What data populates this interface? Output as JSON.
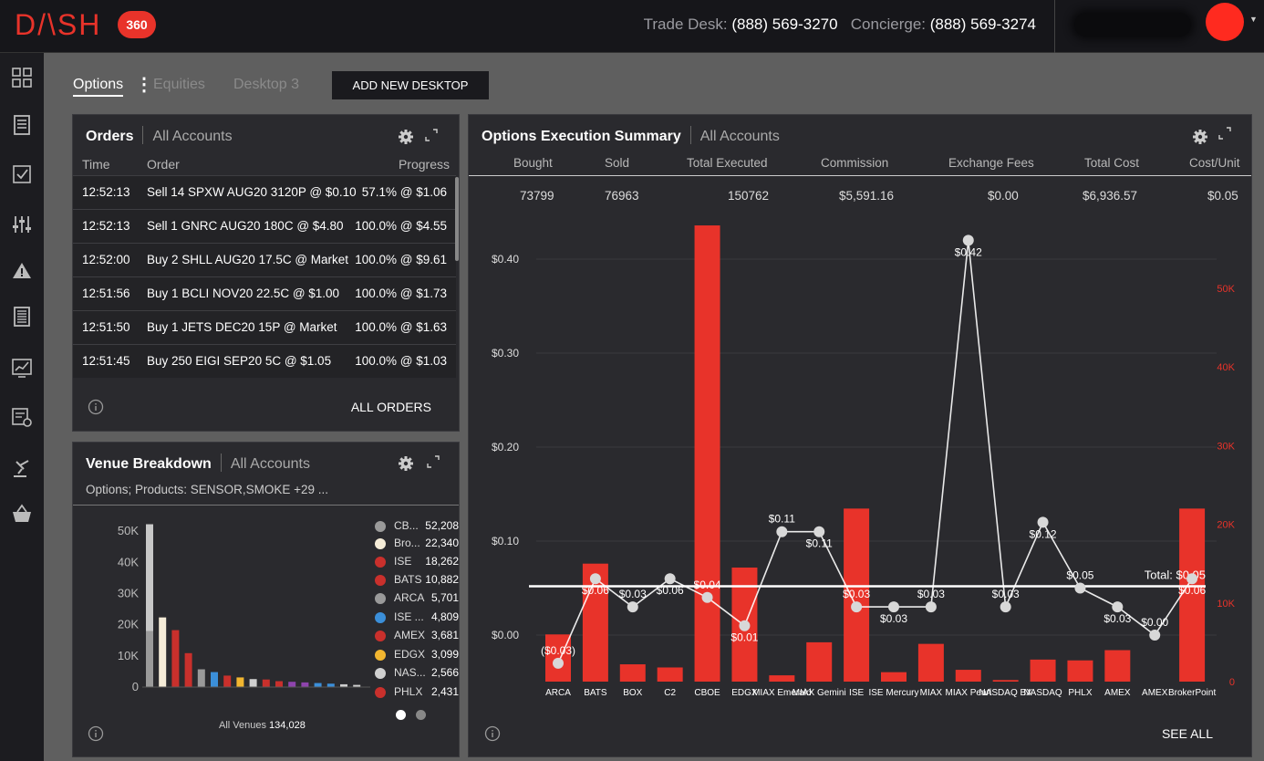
{
  "header": {
    "logo_text": "D/\\SH",
    "logo_badge": "360",
    "trade_desk_label": "Trade Desk:",
    "trade_desk_phone": "(888) 569-3270",
    "concierge_label": "Concierge:",
    "concierge_phone": "(888) 569-3274",
    "avatar_color": "#ff2a1f"
  },
  "sidebar": {
    "icons": [
      "grid-icon",
      "document-icon",
      "checklist-icon",
      "sliders-icon",
      "warning-icon",
      "list-icon",
      "chart-monitor-icon",
      "settings-list-icon",
      "gavel-icon",
      "basket-icon"
    ]
  },
  "desktops": {
    "tabs": [
      "Options",
      "Equities",
      "Desktop 3"
    ],
    "active": "Options",
    "add_label": "ADD NEW DESKTOP"
  },
  "orders": {
    "title": "Orders",
    "account": "All Accounts",
    "columns": [
      "Time",
      "Order",
      "Progress"
    ],
    "rows": [
      {
        "time": "12:52:13",
        "order": "Sell 14 SPXW AUG20 3120P @ $0.10",
        "progress": "57.1% @ $1.06"
      },
      {
        "time": "12:52:13",
        "order": "Sell 1 GNRC AUG20 180C @ $4.80",
        "progress": "100.0% @ $4.55"
      },
      {
        "time": "12:52:00",
        "order": "Buy 2 SHLL AUG20 17.5C @ Market",
        "progress": "100.0% @ $9.61"
      },
      {
        "time": "12:51:56",
        "order": "Buy 1 BCLI NOV20 22.5C @ $1.00",
        "progress": "100.0% @ $1.73"
      },
      {
        "time": "12:51:50",
        "order": "Buy 1 JETS DEC20 15P @ Market",
        "progress": "100.0% @ $1.63"
      },
      {
        "time": "12:51:45",
        "order": "Buy 250 EIGI SEP20 5C @ $1.05",
        "progress": "100.0% @ $1.03"
      }
    ],
    "footer_link": "ALL ORDERS"
  },
  "venue": {
    "title": "Venue Breakdown",
    "account": "All Accounts",
    "filter": "Options; Products: SENSOR,SMOKE +29 ...",
    "total_label": "All Venues",
    "total_value": "134,028",
    "legend": [
      {
        "name": "CB...",
        "value": "52,208",
        "color": "#9a9a9a"
      },
      {
        "name": "Bro...",
        "value": "22,340",
        "color": "#f5ecd8"
      },
      {
        "name": "ISE",
        "value": "18,262",
        "color": "#c9302c"
      },
      {
        "name": "BATS",
        "value": "10,882",
        "color": "#c9302c"
      },
      {
        "name": "ARCA",
        "value": "5,701",
        "color": "#9a9a9a"
      },
      {
        "name": "ISE ...",
        "value": "4,809",
        "color": "#3b8fd9"
      },
      {
        "name": "AMEX",
        "value": "3,681",
        "color": "#c9302c"
      },
      {
        "name": "EDGX",
        "value": "3,099",
        "color": "#f2b630"
      },
      {
        "name": "NAS...",
        "value": "2,566",
        "color": "#d0d0d0"
      },
      {
        "name": "PHLX",
        "value": "2,431",
        "color": "#c9302c"
      }
    ]
  },
  "summary": {
    "title": "Options Execution Summary",
    "account": "All Accounts",
    "columns": [
      "Bought",
      "Sold",
      "Total Executed",
      "Commission",
      "Exchange Fees",
      "Total Cost",
      "Cost/Unit"
    ],
    "values": [
      "73799",
      "76963",
      "150762",
      "$5,591.16",
      "$0.00",
      "$6,936.57",
      "$0.05"
    ],
    "footer_link": "SEE ALL"
  },
  "chart_data": [
    {
      "type": "bar",
      "categories": [
        "CB...",
        "Bro...",
        "ISE",
        "BATS",
        "ARCA",
        "ISE ...",
        "AMEX",
        "EDGX",
        "NAS...",
        "PHLX",
        "",
        "",
        "",
        "",
        "",
        "",
        ""
      ],
      "values": [
        52208,
        22340,
        18262,
        10882,
        5701,
        4809,
        3681,
        3099,
        2566,
        2431,
        1900,
        1700,
        1500,
        1300,
        1100,
        900,
        700
      ],
      "colors": [
        "#9a9a9a",
        "#f5ecd8",
        "#c9302c",
        "#c9302c",
        "#9a9a9a",
        "#3b8fd9",
        "#c9302c",
        "#f2b630",
        "#d0d0d0",
        "#c9302c",
        "#c9302c",
        "#8e44ad",
        "#8e44ad",
        "#3b8fd9",
        "#3b8fd9",
        "#d0d0d0",
        "#d0d0d0"
      ],
      "y_ticks": [
        "0",
        "10K",
        "20K",
        "30K",
        "40K",
        "50K"
      ],
      "ylim": [
        0,
        55000
      ]
    },
    {
      "type": "bar+line",
      "categories": [
        "ARCA",
        "BATS",
        "BOX",
        "C2",
        "CBOE",
        "EDGX",
        "MIAX Emerald",
        "MIAX Gemini",
        "ISE",
        "ISE Mercury",
        "MIAX",
        "MIAX Pearl",
        "NASDAQ BX",
        "NASDAQ",
        "PHLX",
        "AMEX",
        "AMEX",
        "BrokerPoint"
      ],
      "bar_values": [
        6000,
        15000,
        2200,
        1800,
        58000,
        14500,
        800,
        5000,
        22000,
        1200,
        4800,
        1500,
        200,
        2800,
        2700,
        4000,
        0,
        22000
      ],
      "line_values": [
        -0.03,
        0.06,
        0.03,
        0.06,
        0.04,
        0.01,
        0.11,
        0.11,
        0.03,
        0.03,
        0.03,
        0.42,
        0.03,
        0.12,
        0.05,
        0.03,
        0.0,
        0.06
      ],
      "line_labels": [
        "($0.03)",
        "$0.06",
        "$0.03",
        "$0.06",
        "$0.04",
        "$0.01",
        "$0.11",
        "$0.11",
        "$0.03",
        "$0.03",
        "$0.03",
        "$0.42",
        "$0.03",
        "$0.12",
        "$0.05",
        "$0.03",
        "$0.00",
        "$0.06"
      ],
      "total_label": "Total: $0.05",
      "total_value": 0.05,
      "y_left_ticks": [
        "$0.00",
        "$0.10",
        "$0.20",
        "$0.30",
        "$0.40"
      ],
      "y_left_range": [
        -0.05,
        0.45
      ],
      "y_right_ticks": [
        "0",
        "10K",
        "20K",
        "30K",
        "40K",
        "50K"
      ],
      "y_right_range": [
        0,
        58000
      ],
      "bar_color": "#e8332a",
      "line_color": "#ffffff"
    }
  ]
}
